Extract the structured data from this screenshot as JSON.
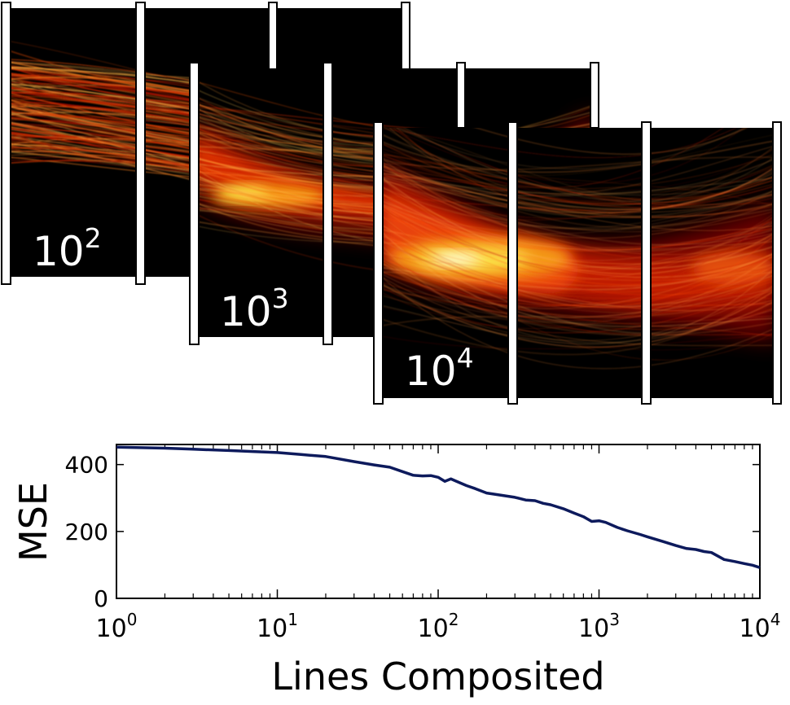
{
  "panels": [
    {
      "label_base": "10",
      "label_exp": "2"
    },
    {
      "label_base": "10",
      "label_exp": "3"
    },
    {
      "label_base": "10",
      "label_exp": "4"
    }
  ],
  "chart_data": {
    "type": "line",
    "title": "",
    "xlabel": "Lines Composited",
    "ylabel": "MSE",
    "xscale": "log",
    "xlim": [
      1,
      10000
    ],
    "ylim": [
      0,
      460
    ],
    "x_ticks": [
      {
        "value": 1,
        "base": "10",
        "exp": "0"
      },
      {
        "value": 10,
        "base": "10",
        "exp": "1"
      },
      {
        "value": 100,
        "base": "10",
        "exp": "2"
      },
      {
        "value": 1000,
        "base": "10",
        "exp": "3"
      },
      {
        "value": 10000,
        "base": "10",
        "exp": "4"
      }
    ],
    "y_ticks": [
      {
        "value": 0,
        "label": "0"
      },
      {
        "value": 200,
        "label": "200"
      },
      {
        "value": 400,
        "label": "400"
      }
    ],
    "grid": false,
    "legend": "none",
    "line_color": "#0d1a5c",
    "series": [
      {
        "x": [
          1,
          2,
          3,
          5,
          7,
          10,
          14,
          20,
          30,
          40,
          50,
          60,
          70,
          80,
          90,
          100,
          110,
          120,
          130,
          150,
          170,
          200,
          250,
          300,
          350,
          400,
          450,
          500,
          600,
          700,
          800,
          900,
          1000,
          1100,
          1300,
          1500,
          1800,
          2000,
          2500,
          3000,
          3500,
          4000,
          4500,
          5000,
          5500,
          6000,
          7000,
          8000,
          9000,
          10000
        ],
        "y": [
          452,
          449,
          446,
          442,
          439,
          436,
          430,
          424,
          409,
          399,
          392,
          379,
          368,
          366,
          367,
          362,
          350,
          357,
          350,
          337,
          328,
          315,
          308,
          302,
          294,
          292,
          284,
          280,
          268,
          255,
          244,
          230,
          232,
          227,
          212,
          202,
          191,
          184,
          170,
          158,
          149,
          146,
          140,
          137,
          126,
          116,
          110,
          104,
          99,
          92
        ]
      }
    ]
  }
}
